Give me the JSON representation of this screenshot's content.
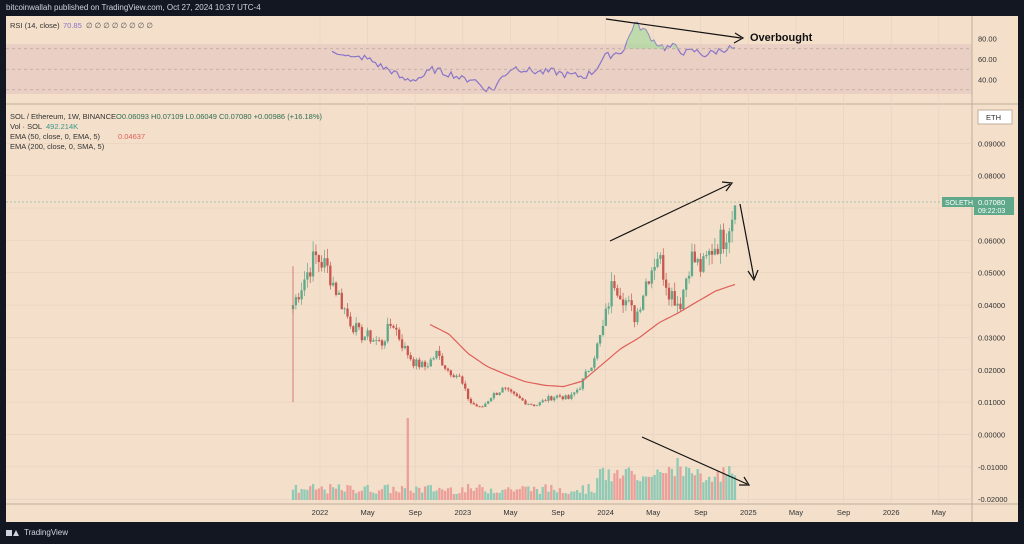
{
  "header": {
    "published": "bitcoinwallah published on TradingView.com, Oct 27, 2024 10:37 UTC-4"
  },
  "footer": {
    "brand": "TradingView"
  },
  "colors": {
    "bg": "#f3dfca",
    "up": "#5fa889",
    "down": "#c8564f",
    "ema": "#e05f5a",
    "rsi": "#8a74c9",
    "volup": "#8fcab6",
    "voldown": "#ec9f99"
  },
  "legend": {
    "title": "SOL / Ethereum, 1W, BINANCE",
    "ohlc": "O0.06093 H0.07109 L0.06049 C0.07080 +0.00986 (+16.18%)",
    "vol_label": "Vol · SOL",
    "vol_value": "492.214K",
    "ema50_label": "EMA (50, close, 0, EMA, 5)",
    "ema50_value": "0.04637",
    "ema200_label": "EMA (200, close, 0, SMA, 5)",
    "currency": "ETH"
  },
  "rsi_panel": {
    "label": "RSI (14, close)",
    "value": "70.85",
    "placeholders": "∅ ∅ ∅ ∅ ∅ ∅ ∅ ∅",
    "ticks": [
      "80.00",
      "60.00",
      "40.00"
    ],
    "annotation": "Overbought"
  },
  "price_label": {
    "symbol": "SOLETH",
    "price": "0.07080",
    "countdown": "09:22:03"
  },
  "chart_data": {
    "type": "candlestick",
    "title": "SOL / Ethereum, 1W, BINANCE",
    "x_ticks": [
      "2022",
      "May",
      "Sep",
      "2023",
      "May",
      "Sep",
      "2024",
      "May",
      "Sep",
      "2025",
      "May",
      "Sep",
      "2026",
      "May"
    ],
    "y_ticks": [
      "0.09000",
      "0.08000",
      "0.07000",
      "0.06000",
      "0.05000",
      "0.04000",
      "0.03000",
      "0.02000",
      "0.01000",
      "0.00000",
      "-0.01000",
      "-0.02000"
    ],
    "ylim": [
      -0.0215,
      0.1
    ],
    "close_anchors": [
      0.04,
      0.048,
      0.055,
      0.052,
      0.044,
      0.036,
      0.031,
      0.03,
      0.028,
      0.035,
      0.027,
      0.022,
      0.021,
      0.025,
      0.02,
      0.018,
      0.01,
      0.008,
      0.012,
      0.014,
      0.012,
      0.01,
      0.009,
      0.011,
      0.012,
      0.011,
      0.015,
      0.022,
      0.032,
      0.048,
      0.042,
      0.036,
      0.048,
      0.056,
      0.045,
      0.04,
      0.055,
      0.051,
      0.058,
      0.061,
      0.0708
    ],
    "ema50_anchors": [
      0.034,
      0.031,
      0.025,
      0.021,
      0.0185,
      0.0163,
      0.0152,
      0.0148,
      0.0165,
      0.0215,
      0.0265,
      0.03,
      0.0345,
      0.0375,
      0.041,
      0.0444,
      0.04637
    ],
    "rsi_range": [
      20,
      100
    ],
    "rsi_anchors": [
      65,
      67,
      60,
      62,
      58,
      52,
      48,
      40,
      40,
      43,
      50,
      47,
      45,
      40,
      41,
      32,
      30,
      44,
      52,
      50,
      48,
      47,
      48,
      45,
      44,
      43,
      48,
      62,
      65,
      69,
      95,
      88,
      77,
      71,
      72,
      66,
      68,
      64,
      67,
      70,
      70.85
    ],
    "rsi_levels": [
      70,
      50,
      30
    ]
  }
}
